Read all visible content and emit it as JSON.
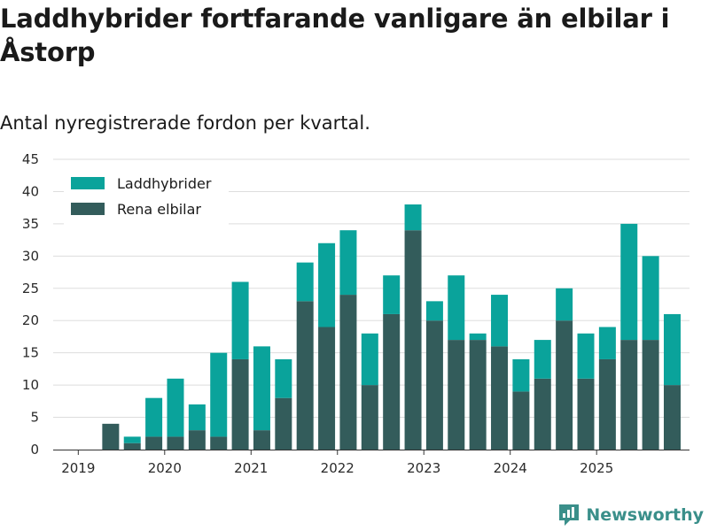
{
  "title": "Laddhybrider fortfarande vanligare än elbilar i Åstorp",
  "subtitle": "Antal nyregistrerade fordon per kvartal.",
  "brand": "Newsworthy",
  "colors": {
    "phev": "#0aa39b",
    "bev": "#335c5b",
    "grid": "#dddddd",
    "brand": "#3a8f8a"
  },
  "chart_data": {
    "type": "bar",
    "stacked": true,
    "categories": [
      "2019Q1",
      "2019Q2",
      "2019Q3",
      "2019Q4",
      "2020Q1",
      "2020Q2",
      "2020Q3",
      "2020Q4",
      "2021Q1",
      "2021Q2",
      "2021Q3",
      "2021Q4",
      "2022Q1",
      "2022Q2",
      "2022Q3",
      "2022Q4",
      "2023Q1",
      "2023Q2",
      "2023Q3",
      "2023Q4",
      "2024Q1",
      "2024Q2",
      "2024Q3",
      "2024Q4",
      "2025Q1",
      "2025Q2",
      "2025Q3",
      "2025Q4"
    ],
    "series": [
      {
        "name": "Rena elbilar",
        "values": [
          0,
          4,
          1,
          2,
          2,
          3,
          2,
          14,
          3,
          8,
          23,
          19,
          24,
          10,
          21,
          34,
          20,
          17,
          17,
          16,
          9,
          11,
          20,
          11,
          14,
          17,
          17,
          10
        ]
      },
      {
        "name": "Laddhybrider",
        "values": [
          0,
          0,
          1,
          6,
          9,
          4,
          13,
          12,
          13,
          6,
          6,
          13,
          10,
          8,
          6,
          4,
          3,
          10,
          1,
          8,
          5,
          6,
          5,
          7,
          5,
          18,
          13,
          11
        ]
      }
    ],
    "legend": [
      "Laddhybrider",
      "Rena elbilar"
    ],
    "legend_position": "top-left",
    "ylim": [
      0,
      45
    ],
    "yticks": [
      0,
      5,
      10,
      15,
      20,
      25,
      30,
      35,
      40,
      45
    ],
    "xtick_labels": [
      "2019",
      "2020",
      "2021",
      "2022",
      "2023",
      "2024",
      "2025"
    ],
    "grid": true
  }
}
